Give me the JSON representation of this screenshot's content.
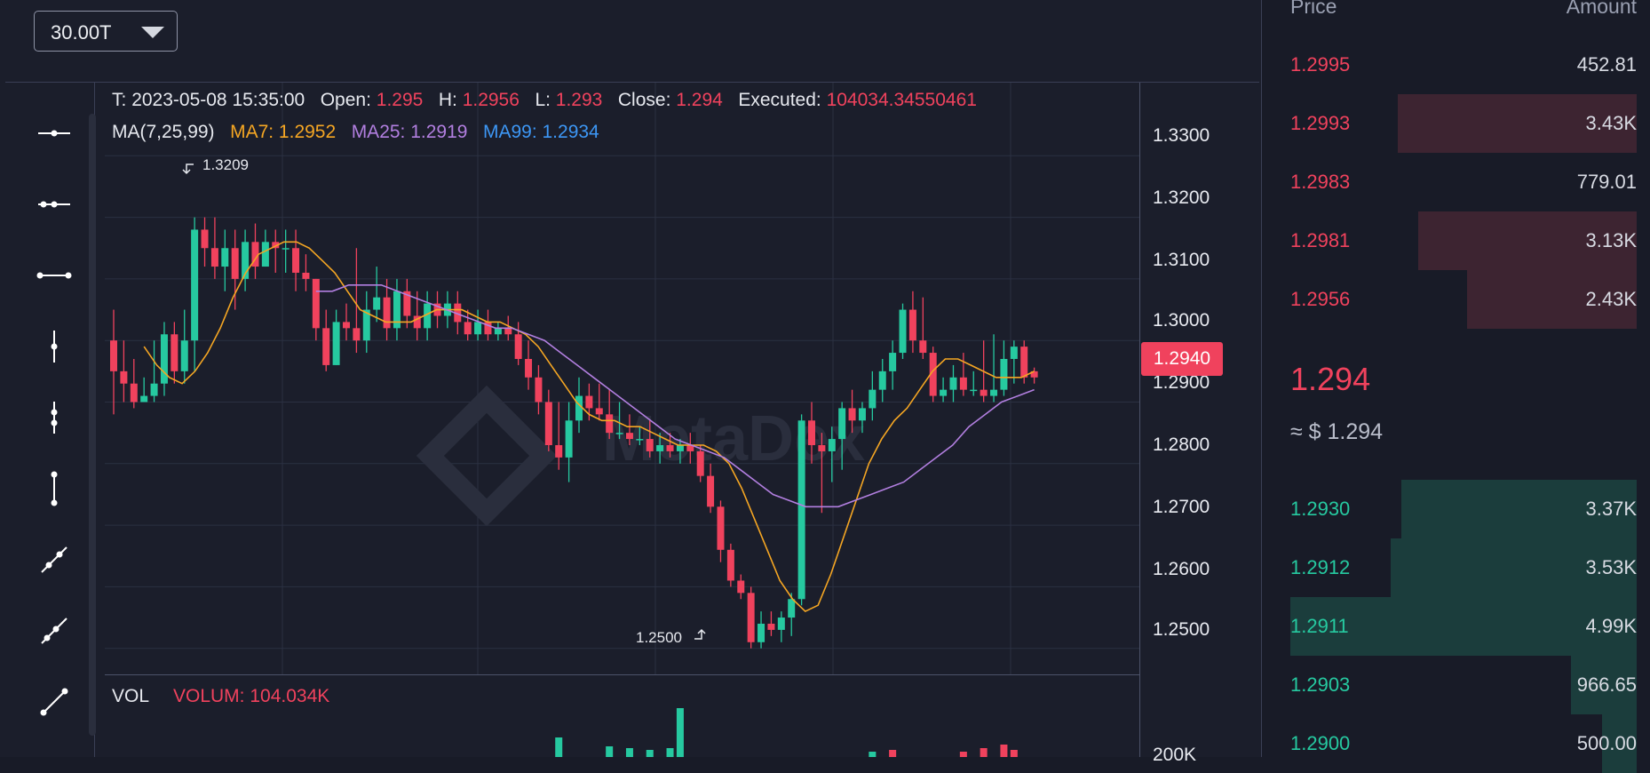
{
  "toolbar": {
    "interval": "30.00T",
    "tools": [
      "horizontal-line",
      "horizontal-ray",
      "horizontal-segment",
      "vertical-line",
      "vertical-ray",
      "vertical-segment",
      "trend-line",
      "ray",
      "line-segment"
    ]
  },
  "info": {
    "time_label": "T:",
    "time": "2023-05-08 15:35:00",
    "open_label": "Open:",
    "open": "1.295",
    "high_label": "H:",
    "high": "1.2956",
    "low_label": "L:",
    "low": "1.293",
    "close_label": "Close:",
    "close": "1.294",
    "executed_label": "Executed:",
    "executed": "104034.34550461",
    "ma_label": "MA(7,25,99)",
    "ma7": "MA7: 1.2952",
    "ma25": "MA25: 1.2919",
    "ma99": "MA99: 1.2934"
  },
  "watermark": "MetaDex",
  "price_axis": [
    "1.3300",
    "1.3200",
    "1.3100",
    "1.3000",
    "1.2900",
    "1.2800",
    "1.2700",
    "1.2600",
    "1.2500"
  ],
  "last_price_tag": "1.2940",
  "high_marker": "1.3209",
  "low_marker": "1.2500",
  "volume": {
    "label": "VOL",
    "value": "VOLUM: 104.034K",
    "axis": "200K"
  },
  "colors": {
    "up": "#26c9a0",
    "down": "#f0425d",
    "ma7": "#f5a623",
    "ma25": "#b27fe0",
    "ma99": "#3d97f5"
  },
  "chart_data": {
    "type": "candlestick",
    "ylim": [
      1.24,
      1.34
    ],
    "candles": [
      [
        1.3,
        1.305,
        1.288,
        1.295
      ],
      [
        1.295,
        1.3,
        1.29,
        1.293
      ],
      [
        1.293,
        1.297,
        1.289,
        1.29
      ],
      [
        1.29,
        1.294,
        1.29,
        1.291
      ],
      [
        1.291,
        1.3,
        1.29,
        1.293
      ],
      [
        1.293,
        1.303,
        1.291,
        1.301
      ],
      [
        1.301,
        1.303,
        1.293,
        1.295
      ],
      [
        1.295,
        1.305,
        1.293,
        1.3
      ],
      [
        1.3,
        1.32,
        1.295,
        1.318
      ],
      [
        1.318,
        1.32,
        1.312,
        1.315
      ],
      [
        1.315,
        1.32,
        1.31,
        1.312
      ],
      [
        1.312,
        1.318,
        1.308,
        1.315
      ],
      [
        1.315,
        1.318,
        1.305,
        1.31
      ],
      [
        1.31,
        1.318,
        1.308,
        1.316
      ],
      [
        1.316,
        1.319,
        1.31,
        1.312
      ],
      [
        1.312,
        1.318,
        1.312,
        1.316
      ],
      [
        1.316,
        1.318,
        1.311,
        1.315
      ],
      [
        1.315,
        1.318,
        1.311,
        1.315
      ],
      [
        1.315,
        1.318,
        1.308,
        1.311
      ],
      [
        1.311,
        1.314,
        1.308,
        1.31
      ],
      [
        1.31,
        1.31,
        1.3,
        1.302
      ],
      [
        1.302,
        1.305,
        1.295,
        1.296
      ],
      [
        1.296,
        1.305,
        1.296,
        1.303
      ],
      [
        1.303,
        1.306,
        1.3,
        1.302
      ],
      [
        1.302,
        1.315,
        1.298,
        1.3
      ],
      [
        1.3,
        1.308,
        1.298,
        1.305
      ],
      [
        1.305,
        1.312,
        1.303,
        1.307
      ],
      [
        1.307,
        1.31,
        1.3,
        1.302
      ],
      [
        1.302,
        1.31,
        1.3,
        1.308
      ],
      [
        1.308,
        1.31,
        1.302,
        1.304
      ],
      [
        1.304,
        1.308,
        1.3,
        1.302
      ],
      [
        1.302,
        1.308,
        1.3,
        1.306
      ],
      [
        1.306,
        1.308,
        1.302,
        1.304
      ],
      [
        1.304,
        1.308,
        1.302,
        1.306
      ],
      [
        1.306,
        1.308,
        1.301,
        1.303
      ],
      [
        1.303,
        1.305,
        1.3,
        1.301
      ],
      [
        1.301,
        1.305,
        1.3,
        1.303
      ],
      [
        1.303,
        1.305,
        1.3,
        1.301
      ],
      [
        1.301,
        1.303,
        1.3,
        1.302
      ],
      [
        1.302,
        1.304,
        1.3,
        1.301
      ],
      [
        1.301,
        1.303,
        1.296,
        1.297
      ],
      [
        1.297,
        1.3,
        1.292,
        1.294
      ],
      [
        1.294,
        1.296,
        1.288,
        1.29
      ],
      [
        1.29,
        1.292,
        1.282,
        1.283
      ],
      [
        1.283,
        1.29,
        1.279,
        1.281
      ],
      [
        1.281,
        1.29,
        1.277,
        1.287
      ],
      [
        1.287,
        1.294,
        1.285,
        1.291
      ],
      [
        1.291,
        1.293,
        1.287,
        1.289
      ],
      [
        1.289,
        1.293,
        1.287,
        1.288
      ],
      [
        1.288,
        1.292,
        1.284,
        1.285
      ],
      [
        1.285,
        1.29,
        1.284,
        1.285
      ],
      [
        1.285,
        1.288,
        1.283,
        1.284
      ],
      [
        1.284,
        1.286,
        1.283,
        1.284
      ],
      [
        1.284,
        1.287,
        1.281,
        1.282
      ],
      [
        1.282,
        1.285,
        1.28,
        1.283
      ],
      [
        1.283,
        1.285,
        1.281,
        1.282
      ],
      [
        1.282,
        1.284,
        1.28,
        1.283
      ],
      [
        1.283,
        1.285,
        1.28,
        1.282
      ],
      [
        1.282,
        1.283,
        1.277,
        1.278
      ],
      [
        1.278,
        1.28,
        1.272,
        1.273
      ],
      [
        1.273,
        1.274,
        1.264,
        1.266
      ],
      [
        1.266,
        1.267,
        1.26,
        1.261
      ],
      [
        1.261,
        1.262,
        1.258,
        1.259
      ],
      [
        1.259,
        1.26,
        1.25,
        1.251
      ],
      [
        1.251,
        1.256,
        1.25,
        1.254
      ],
      [
        1.254,
        1.256,
        1.252,
        1.253
      ],
      [
        1.253,
        1.256,
        1.251,
        1.255
      ],
      [
        1.255,
        1.259,
        1.252,
        1.258
      ],
      [
        1.258,
        1.288,
        1.257,
        1.287
      ],
      [
        1.287,
        1.29,
        1.28,
        1.283
      ],
      [
        1.283,
        1.285,
        1.272,
        1.282
      ],
      [
        1.282,
        1.286,
        1.277,
        1.284
      ],
      [
        1.284,
        1.29,
        1.279,
        1.289
      ],
      [
        1.289,
        1.292,
        1.285,
        1.287
      ],
      [
        1.287,
        1.29,
        1.285,
        1.289
      ],
      [
        1.289,
        1.295,
        1.287,
        1.292
      ],
      [
        1.292,
        1.297,
        1.29,
        1.295
      ],
      [
        1.295,
        1.3,
        1.292,
        1.298
      ],
      [
        1.298,
        1.306,
        1.297,
        1.305
      ],
      [
        1.305,
        1.308,
        1.298,
        1.3
      ],
      [
        1.3,
        1.307,
        1.297,
        1.298
      ],
      [
        1.298,
        1.299,
        1.29,
        1.291
      ],
      [
        1.291,
        1.294,
        1.29,
        1.292
      ],
      [
        1.292,
        1.296,
        1.29,
        1.294
      ],
      [
        1.294,
        1.298,
        1.291,
        1.292
      ],
      [
        1.292,
        1.295,
        1.291,
        1.292
      ],
      [
        1.292,
        1.3,
        1.29,
        1.291
      ],
      [
        1.291,
        1.301,
        1.29,
        1.292
      ],
      [
        1.292,
        1.3,
        1.291,
        1.297
      ],
      [
        1.297,
        1.3,
        1.293,
        1.299
      ],
      [
        1.299,
        1.3,
        1.293,
        1.294
      ],
      [
        1.295,
        1.2956,
        1.293,
        1.294
      ]
    ],
    "ma7": [
      1.299,
      1.296,
      1.294,
      1.293,
      1.295,
      1.298,
      1.302,
      1.307,
      1.311,
      1.314,
      1.315,
      1.316,
      1.316,
      1.315,
      1.313,
      1.311,
      1.308,
      1.305,
      1.304,
      1.303,
      1.303,
      1.303,
      1.304,
      1.305,
      1.305,
      1.305,
      1.304,
      1.303,
      1.303,
      1.302,
      1.301,
      1.299,
      1.296,
      1.293,
      1.29,
      1.288,
      1.287,
      1.287,
      1.286,
      1.286,
      1.285,
      1.284,
      1.283,
      1.283,
      1.283,
      1.282,
      1.28,
      1.276,
      1.271,
      1.266,
      1.261,
      1.258,
      1.256,
      1.257,
      1.262,
      1.268,
      1.274,
      1.28,
      1.284,
      1.287,
      1.289,
      1.292,
      1.295,
      1.297,
      1.297,
      1.296,
      1.295,
      1.294,
      1.294,
      1.294,
      1.295
    ],
    "ma25": [
      1.308,
      1.308,
      1.309,
      1.309,
      1.309,
      1.308,
      1.307,
      1.306,
      1.305,
      1.304,
      1.303,
      1.302,
      1.302,
      1.301,
      1.3,
      1.298,
      1.296,
      1.294,
      1.292,
      1.29,
      1.288,
      1.286,
      1.284,
      1.283,
      1.282,
      1.281,
      1.279,
      1.277,
      1.275,
      1.274,
      1.273,
      1.273,
      1.273,
      1.274,
      1.275,
      1.276,
      1.277,
      1.279,
      1.281,
      1.283,
      1.286,
      1.288,
      1.29,
      1.291,
      1.292
    ]
  },
  "order_book": {
    "price_header": "Price",
    "amount_header": "Amount",
    "asks": [
      {
        "price": "1.2995",
        "amount": "452.81",
        "depth": 0.0
      },
      {
        "price": "1.2993",
        "amount": "3.43K",
        "depth": 0.69
      },
      {
        "price": "1.2983",
        "amount": "779.01",
        "depth": 0.0
      },
      {
        "price": "1.2981",
        "amount": "3.13K",
        "depth": 0.63
      },
      {
        "price": "1.2956",
        "amount": "2.43K",
        "depth": 0.49
      }
    ],
    "last_price": "1.294",
    "usd_value": "≈ $ 1.294",
    "bids": [
      {
        "price": "1.2930",
        "amount": "3.37K",
        "depth": 0.68
      },
      {
        "price": "1.2912",
        "amount": "3.53K",
        "depth": 0.71
      },
      {
        "price": "1.2911",
        "amount": "4.99K",
        "depth": 1.0
      },
      {
        "price": "1.2903",
        "amount": "966.65",
        "depth": 0.19
      },
      {
        "price": "1.2900",
        "amount": "500.00",
        "depth": 0.1
      }
    ]
  }
}
